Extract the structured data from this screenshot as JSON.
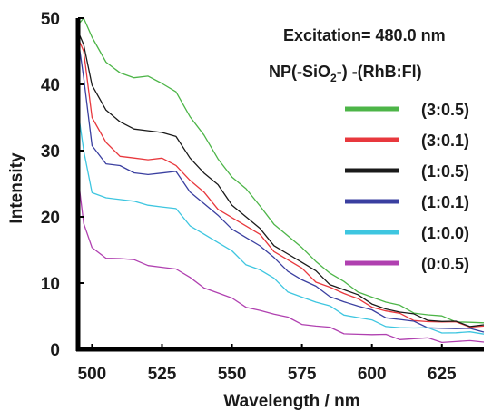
{
  "chart_data": {
    "type": "line",
    "xlabel": "Wavelength / nm",
    "ylabel": "Intensity",
    "xlim": [
      495,
      640
    ],
    "ylim": [
      0,
      50
    ],
    "xticks": [
      "500",
      "525",
      "550",
      "575",
      "600",
      "625"
    ],
    "yticks": [
      "0",
      "10",
      "20",
      "30",
      "40",
      "50"
    ],
    "annotation": "Excitation= 480.0 nm",
    "legend_title": {
      "prefix": "NP(-SiO",
      "sub": "2",
      "suffix": "-) -(RhB:Fl)"
    },
    "legend_position": "top-right",
    "x": [
      495,
      497,
      500,
      505,
      510,
      515,
      520,
      525,
      530,
      535,
      540,
      545,
      550,
      555,
      560,
      565,
      570,
      575,
      580,
      585,
      590,
      595,
      600,
      605,
      610,
      615,
      620,
      625,
      630,
      635,
      640
    ],
    "series": [
      {
        "name": "(3:0.5)",
        "color": "#4db548",
        "values": [
          49,
          50,
          47,
          43,
          42,
          41,
          41,
          40.5,
          39,
          35,
          32,
          29,
          26,
          24,
          22,
          19,
          17,
          15,
          13.5,
          11.5,
          10,
          9,
          8,
          7,
          6.3,
          5.7,
          5.2,
          4.8,
          4.5,
          4.2,
          4
        ]
      },
      {
        "name": "(3:0.1)",
        "color": "#e8383d",
        "values": [
          47,
          45,
          35,
          31,
          29.5,
          29,
          28.5,
          28.5,
          28,
          25.5,
          23.5,
          21.5,
          20,
          18.5,
          17,
          15,
          13.5,
          12,
          10.5,
          9.5,
          8.3,
          7.3,
          6.6,
          5.8,
          5.2,
          4.7,
          4.3,
          4,
          3.8,
          3.6,
          3.5
        ]
      },
      {
        "name": "(1:0.5)",
        "color": "#1a1a1a",
        "values": [
          48,
          46,
          40,
          36,
          34,
          33.5,
          33,
          32.5,
          32.5,
          29,
          26.5,
          24.5,
          22,
          20,
          18,
          16,
          14.5,
          13,
          11.5,
          10,
          9,
          8,
          7.2,
          6.2,
          5.5,
          5,
          4.6,
          4.2,
          4,
          3.8,
          3.7
        ]
      },
      {
        "name": "(1:0.1)",
        "color": "#3a3fa0",
        "values": [
          47,
          41,
          31,
          28,
          27.5,
          27,
          26.5,
          26.5,
          26.5,
          24,
          22,
          20,
          18.5,
          17,
          15.5,
          13.5,
          12,
          10.5,
          9.3,
          8.3,
          7.3,
          6.4,
          5.6,
          5,
          4.5,
          4,
          3.6,
          3.3,
          3,
          2.8,
          2.6
        ]
      },
      {
        "name": "(1:0.0)",
        "color": "#3ec6e0",
        "values": [
          36,
          30,
          24,
          23,
          22.5,
          22,
          22,
          21.5,
          21,
          19,
          17.5,
          16,
          14.5,
          13,
          12,
          10.5,
          9,
          8,
          7,
          6.2,
          5.4,
          4.8,
          4.2,
          3.8,
          3.4,
          3.1,
          2.9,
          2.7,
          2.5,
          2.4,
          2.3
        ]
      },
      {
        "name": "(0:0.5)",
        "color": "#b040b0",
        "values": [
          26,
          19,
          15,
          14,
          13.7,
          13.3,
          13,
          12.5,
          12,
          10.5,
          9.5,
          8.5,
          7.5,
          6.7,
          6,
          5.2,
          4.5,
          4,
          3.5,
          3.1,
          2.7,
          2.4,
          2.1,
          1.9,
          1.7,
          1.6,
          1.5,
          1.4,
          1.3,
          1.2,
          1.1
        ]
      }
    ]
  }
}
